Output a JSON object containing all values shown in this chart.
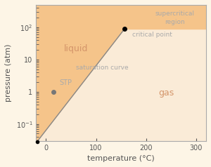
{
  "title": "",
  "xlabel": "temperature (°C)",
  "ylabel": "pressure (atm)",
  "xlim": [
    -20,
    320
  ],
  "ylim_log": [
    0.03,
    500
  ],
  "background_color": "#fdf5e6",
  "liquid_color": "#f5c48a",
  "gas_color": "#faebd7",
  "curve_color": "#888888",
  "critical_point": [
    157,
    90
  ],
  "triple_point": [
    -18,
    0.028
  ],
  "stp_point": [
    15,
    1.0
  ],
  "label_liquid": "liquid",
  "label_gas": "gas",
  "label_supercritical": "supercritical\nregion",
  "label_saturation": "saturation curve",
  "label_critical": "critical point",
  "label_stp": "STP",
  "text_color_light": "#aaaaaa",
  "text_color_orange": "#d4956a",
  "text_color_dark": "#555555",
  "liquid_label_color": "#d4956a",
  "gas_label_color": "#d4956a",
  "supercritical_label_color": "#aaaaaa",
  "saturation_label_color": "#aaaaaa",
  "critical_label_color": "#aaaaaa",
  "stp_label_color": "#aaaaaa"
}
